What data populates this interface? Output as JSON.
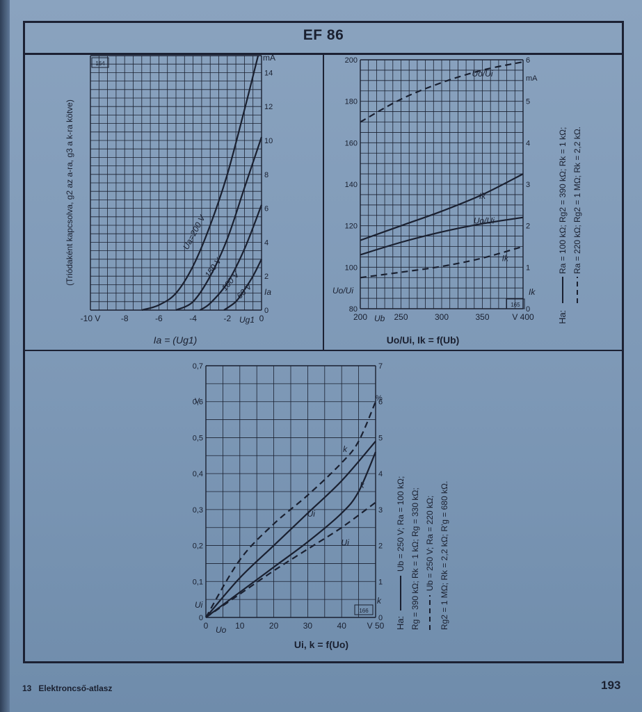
{
  "page": {
    "title": "EF 86",
    "footer_left_number": "13",
    "footer_left_text": "Elektroncső-atlasz",
    "page_number": "193"
  },
  "chart_data": [
    {
      "id": "164",
      "type": "line",
      "caption": "Ia = (Ug1)",
      "side_note": "(Triódaként kapcsolva, g2 az a-ra, g3 a k-ra kötve)",
      "xlabel": "Ug1",
      "ylabel": "Ia",
      "y_unit": "mA",
      "xlim": [
        -10,
        0
      ],
      "ylim": [
        0,
        15
      ],
      "x_ticks": [
        "-10 V",
        "-8",
        "-6",
        "-4",
        "-2",
        "0"
      ],
      "y_ticks": [
        "0",
        "2",
        "4",
        "6",
        "8",
        "10",
        "12",
        "14"
      ],
      "grid": true,
      "series": [
        {
          "name": "Ua=200 V",
          "x": [
            -7.0,
            -6.0,
            -5.0,
            -4.0,
            -3.0,
            -2.0,
            -1.0,
            -0.2
          ],
          "y": [
            0,
            0.3,
            1.0,
            2.6,
            5.0,
            8.0,
            11.8,
            15.0
          ]
        },
        {
          "name": "150 V",
          "x": [
            -5.0,
            -4.0,
            -3.0,
            -2.0,
            -1.0,
            0
          ],
          "y": [
            0,
            0.5,
            2.0,
            4.2,
            7.2,
            10.2
          ]
        },
        {
          "name": "100 V",
          "x": [
            -3.6,
            -3.0,
            -2.0,
            -1.0,
            0
          ],
          "y": [
            0,
            0.4,
            1.6,
            3.6,
            6.2
          ]
        },
        {
          "name": "60 V",
          "x": [
            -2.2,
            -1.5,
            -1.0,
            -0.5,
            0
          ],
          "y": [
            0,
            0.5,
            1.2,
            2.0,
            3.0
          ]
        }
      ]
    },
    {
      "id": "165",
      "type": "line",
      "caption": "Uo/Ui, Ik = f(Ub)",
      "xlabel": "Ub",
      "ylabel": "Uo/Ui",
      "y2label": "Ik",
      "y2_unit": "mA",
      "xlim": [
        200,
        400
      ],
      "ylim": [
        80,
        200
      ],
      "y2lim": [
        0,
        6
      ],
      "x_ticks": [
        "200",
        "250",
        "300",
        "350",
        "V 400"
      ],
      "y_ticks": [
        "80",
        "100",
        "120",
        "140",
        "160",
        "180",
        "200"
      ],
      "y2_ticks": [
        "0",
        "1",
        "2",
        "3",
        "4",
        "5",
        "6"
      ],
      "grid": true,
      "legend": {
        "prefix": "Ha:",
        "solid": "Ra = 100 kΩ; Rg2 = 390 kΩ; Rk = 1 kΩ;",
        "dashed": "Ra = 220 kΩ; Rg2 = 1 MΩ; Rk = 2,2 kΩ."
      },
      "series": [
        {
          "name": "Uo/Ui",
          "style": "dashed",
          "axis": "left",
          "x": [
            200,
            250,
            300,
            350,
            400
          ],
          "y": [
            170,
            181,
            189,
            195,
            199
          ]
        },
        {
          "name": "Ik",
          "style": "solid",
          "axis": "right",
          "x": [
            200,
            250,
            300,
            350,
            400
          ],
          "y": [
            1.65,
            2.0,
            2.35,
            2.75,
            3.25
          ]
        },
        {
          "name": "Uo/Ui",
          "style": "solid",
          "axis": "left",
          "x": [
            200,
            250,
            300,
            350,
            400
          ],
          "y": [
            106,
            112,
            117,
            121,
            124
          ]
        },
        {
          "name": "Ik",
          "style": "dashed",
          "axis": "right",
          "x": [
            200,
            250,
            300,
            350,
            400
          ],
          "y": [
            0.75,
            0.88,
            1.02,
            1.22,
            1.5
          ]
        }
      ]
    },
    {
      "id": "166",
      "type": "line",
      "caption": "Ui, k = f(Uo)",
      "xlabel": "Uo",
      "ylabel": "Ui",
      "y_unit": "V",
      "y2label": "k",
      "y2_unit": "%",
      "xlim": [
        0,
        50
      ],
      "ylim": [
        0,
        0.7
      ],
      "y2lim": [
        0,
        7
      ],
      "x_ticks": [
        "0",
        "10",
        "20",
        "30",
        "40",
        "V 50"
      ],
      "y_ticks": [
        "0",
        "0,1",
        "0,2",
        "0,3",
        "0,4",
        "0,5",
        "0,6",
        "0,7"
      ],
      "y2_ticks": [
        "0",
        "1",
        "2",
        "3",
        "4",
        "5",
        "6",
        "7"
      ],
      "grid": true,
      "legend": {
        "prefix": "Ha:",
        "solid_1": "Ub = 250 V;   Ra = 100 kΩ;",
        "solid_2": "Rg = 390 kΩ;   Rk = 1 kΩ;   Rg = 330 kΩ;",
        "dashed_1": "Ub = 250 V;   Ra = 220 kΩ;",
        "dashed_2": "Rg2 = 1 MΩ;   Rk = 2,2 kΩ;   R'g = 680 kΩ."
      },
      "series": [
        {
          "name": "k",
          "style": "dashed",
          "axis": "right",
          "x": [
            0,
            10,
            20,
            30,
            40,
            45,
            50
          ],
          "y": [
            0,
            1.6,
            2.6,
            3.4,
            4.3,
            4.9,
            6.0
          ]
        },
        {
          "name": "Ui",
          "style": "solid",
          "axis": "left",
          "x": [
            0,
            10,
            20,
            30,
            40,
            50
          ],
          "y": [
            0,
            0.11,
            0.2,
            0.29,
            0.38,
            0.49
          ]
        },
        {
          "name": "k",
          "style": "solid",
          "axis": "right",
          "x": [
            0,
            10,
            20,
            30,
            40,
            45,
            50
          ],
          "y": [
            0,
            0.7,
            1.4,
            2.1,
            2.9,
            3.5,
            4.6
          ]
        },
        {
          "name": "Ui",
          "style": "dashed",
          "axis": "left",
          "x": [
            0,
            10,
            20,
            30,
            40,
            50
          ],
          "y": [
            0,
            0.065,
            0.13,
            0.19,
            0.25,
            0.32
          ]
        }
      ]
    }
  ]
}
